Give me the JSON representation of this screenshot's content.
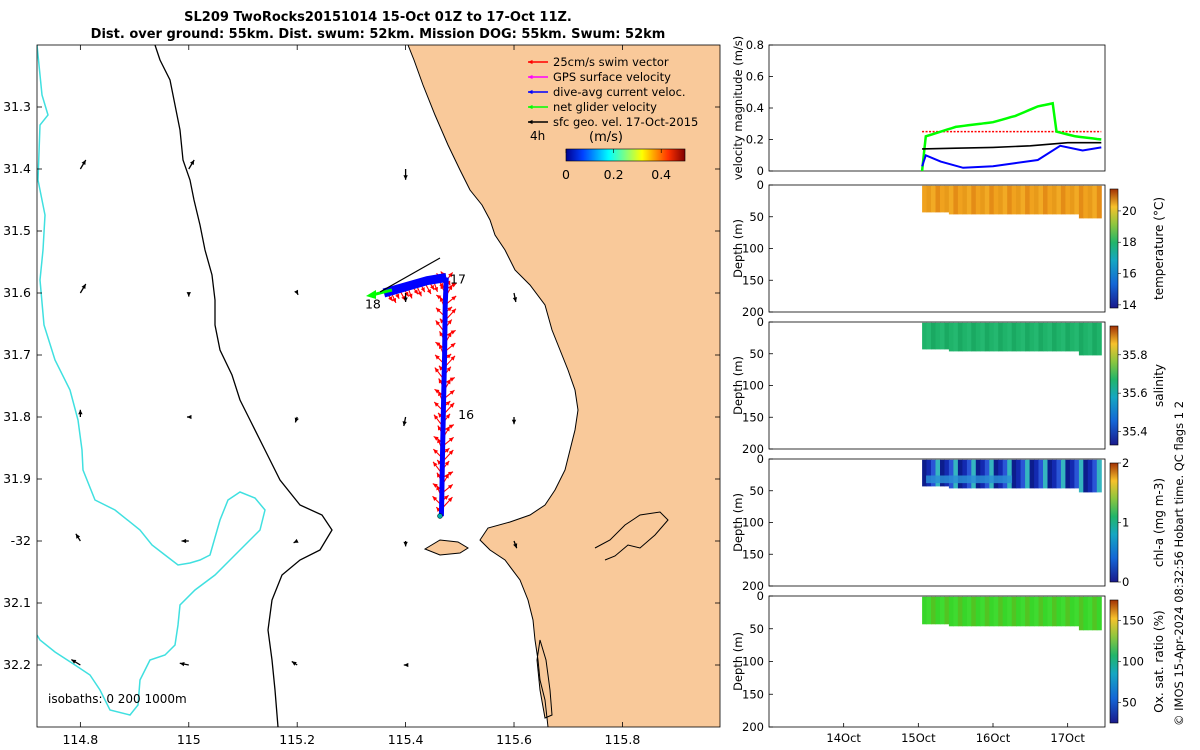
{
  "title_line1": "SL209 TwoRocks20151014 15-Oct 01Z to 17-Oct 11Z.",
  "title_line2": "Dist. over ground: 55km. Dist. swum: 52km. Mission DOG: 55km. Swum: 52km",
  "credit": "© IMOS 15-Apr-2024 08:32:56 Hobart time. QC flags 1  2",
  "colors": {
    "land": "#f9c99a",
    "isobath_200": "#40e0e0",
    "swim": "#ff0000",
    "gps": "#ff00ff",
    "current": "#0000ff",
    "net": "#00ff00",
    "geo": "#000000"
  },
  "chart_data": [
    {
      "type": "map",
      "xlim": [
        114.72,
        115.98
      ],
      "ylim": [
        -32.3,
        -31.2
      ],
      "xticks": [
        114.8,
        115.0,
        115.2,
        115.4,
        115.6,
        115.8
      ],
      "xtick_labels": [
        "114.8",
        "115",
        "115.2",
        "115.4",
        "115.6",
        "115.8"
      ],
      "yticks": [
        -31.3,
        -31.4,
        -31.5,
        -31.6,
        -31.7,
        -31.8,
        -31.9,
        -32.0,
        -32.1,
        -32.2
      ],
      "ytick_labels": [
        "31.3",
        "31.4",
        "31.5",
        "31.6",
        "31.7",
        "31.8",
        "31.9",
        "-32",
        "32.1",
        "32.2"
      ],
      "legend": [
        {
          "label": "25cm/s swim vector",
          "color": "#ff0000"
        },
        {
          "label": "GPS surface velocity",
          "color": "#ff00ff"
        },
        {
          "label": "dive-avg current veloc.",
          "color": "#0000ff"
        },
        {
          "label": "net glider velocity",
          "color": "#00ff00"
        },
        {
          "label": "sfc geo. vel. 17-Oct-2015",
          "color": "#000000"
        }
      ],
      "colorbar": {
        "label": "(m/s)",
        "range": [
          0,
          0.5
        ],
        "ticks": [
          0,
          0.2,
          0.4
        ],
        "tick_labels": [
          "0",
          "0.2",
          "0.4"
        ]
      },
      "time_label": "4h",
      "isobaths_text": "isobaths: 0   200  1000m",
      "track": [
        [
          115.475,
          -31.575
        ],
        [
          115.473,
          -31.62
        ],
        [
          115.472,
          -31.7
        ],
        [
          115.47,
          -31.78
        ],
        [
          115.468,
          -31.86
        ],
        [
          115.467,
          -31.92
        ],
        [
          115.466,
          -31.96
        ]
      ],
      "track_west": [
        [
          115.475,
          -31.575
        ],
        [
          115.44,
          -31.58
        ],
        [
          115.4,
          -31.59
        ],
        [
          115.36,
          -31.6
        ]
      ],
      "day_labels": [
        {
          "text": "16",
          "lon": 115.497,
          "lat": -31.803
        },
        {
          "text": "17",
          "lon": 115.482,
          "lat": -31.585
        },
        {
          "text": "18",
          "lon": 115.325,
          "lat": -31.625
        }
      ],
      "geo_vectors": [
        {
          "lon": 114.8,
          "lat": -31.4,
          "u": 0.3,
          "v": 0.5
        },
        {
          "lon": 115.0,
          "lat": -31.4,
          "u": 0.3,
          "v": 0.5
        },
        {
          "lon": 115.4,
          "lat": -31.4,
          "u": 0,
          "v": -0.6
        },
        {
          "lon": 114.8,
          "lat": -31.6,
          "u": 0.3,
          "v": 0.5
        },
        {
          "lon": 115.0,
          "lat": -31.6,
          "u": 0,
          "v": -0.2
        },
        {
          "lon": 115.2,
          "lat": -31.6,
          "u": 0.05,
          "v": -0.1
        },
        {
          "lon": 115.4,
          "lat": -31.6,
          "u": 0,
          "v": -0.5
        },
        {
          "lon": 115.6,
          "lat": -31.6,
          "u": 0.1,
          "v": -0.5
        },
        {
          "lon": 114.8,
          "lat": -31.8,
          "u": 0,
          "v": 0.4
        },
        {
          "lon": 115.0,
          "lat": -31.8,
          "u": -0.1,
          "v": 0
        },
        {
          "lon": 115.2,
          "lat": -31.8,
          "u": -0.1,
          "v": -0.3
        },
        {
          "lon": 115.4,
          "lat": -31.8,
          "u": -0.1,
          "v": -0.5
        },
        {
          "lon": 115.6,
          "lat": -31.8,
          "u": 0,
          "v": -0.4
        },
        {
          "lon": 114.8,
          "lat": -32.0,
          "u": -0.25,
          "v": 0.4
        },
        {
          "lon": 115.0,
          "lat": -32.0,
          "u": -0.4,
          "v": 0
        },
        {
          "lon": 115.2,
          "lat": -32.0,
          "u": -0.2,
          "v": -0.1
        },
        {
          "lon": 115.4,
          "lat": -32.0,
          "u": 0,
          "v": -0.3
        },
        {
          "lon": 115.6,
          "lat": -32.0,
          "u": 0.15,
          "v": -0.4
        },
        {
          "lon": 114.8,
          "lat": -32.2,
          "u": -0.5,
          "v": 0.3
        },
        {
          "lon": 115.0,
          "lat": -32.2,
          "u": -0.5,
          "v": 0.1
        },
        {
          "lon": 115.2,
          "lat": -32.2,
          "u": -0.3,
          "v": 0.2
        },
        {
          "lon": 115.4,
          "lat": -32.2,
          "u": -0.1,
          "v": 0
        }
      ]
    },
    {
      "type": "line",
      "ylabel": "velocity magnitude (m/s)",
      "ylim": [
        0,
        0.8
      ],
      "yticks": [
        0,
        0.2,
        0.4,
        0.6,
        0.8
      ],
      "ytick_labels": [
        "0",
        "0.2",
        "0.4",
        "0.6",
        "0.8"
      ],
      "xlim": [
        13.0,
        17.5
      ],
      "series": [
        {
          "name": "swim",
          "color": "#ff0000",
          "x": [
            15.05,
            17.45
          ],
          "y": [
            0.25,
            0.25
          ]
        },
        {
          "name": "net",
          "color": "#00ff00",
          "x": [
            15.05,
            15.1,
            15.5,
            16.0,
            16.3,
            16.6,
            16.8,
            16.85,
            17.1,
            17.45
          ],
          "y": [
            0.0,
            0.22,
            0.28,
            0.31,
            0.35,
            0.41,
            0.43,
            0.25,
            0.22,
            0.2
          ]
        },
        {
          "name": "current",
          "color": "#0000ff",
          "x": [
            15.05,
            15.1,
            15.3,
            15.6,
            16.0,
            16.3,
            16.6,
            16.9,
            17.2,
            17.45
          ],
          "y": [
            0.03,
            0.1,
            0.06,
            0.02,
            0.03,
            0.05,
            0.07,
            0.16,
            0.13,
            0.15
          ]
        },
        {
          "name": "geo",
          "color": "#000000",
          "x": [
            15.05,
            15.5,
            16.0,
            16.5,
            17.0,
            17.45
          ],
          "y": [
            0.14,
            0.145,
            0.15,
            0.16,
            0.18,
            0.18
          ]
        }
      ]
    },
    {
      "type": "heatmap",
      "variable": "temperature",
      "ylabel": "Depth (m)",
      "ylim": [
        0,
        200
      ],
      "yticks": [
        0,
        50,
        100,
        150,
        200
      ],
      "ytick_labels": [
        "0",
        "50",
        "100",
        "150",
        "200"
      ],
      "data_x": [
        15.05,
        17.45
      ],
      "depth_range": [
        0,
        45
      ],
      "fill_colors": [
        "#f0a21e",
        "#e89a1a",
        "#f2aa24",
        "#e48c16"
      ],
      "colorbar": {
        "label": "temperature (°C)",
        "range": [
          13.8,
          21.4
        ],
        "ticks": [
          14,
          16,
          18,
          20
        ],
        "tick_labels": [
          "14",
          "16",
          "18",
          "20"
        ],
        "colormap": "parula"
      }
    },
    {
      "type": "heatmap",
      "variable": "salinity",
      "ylabel": "Depth (m)",
      "ylim": [
        0,
        200
      ],
      "yticks": [
        0,
        50,
        100,
        150,
        200
      ],
      "ytick_labels": [
        "0",
        "50",
        "100",
        "150",
        "200"
      ],
      "data_x": [
        15.05,
        17.45
      ],
      "depth_range": [
        0,
        45
      ],
      "fill_colors": [
        "#1fb36a",
        "#24b870",
        "#1aa962"
      ],
      "colorbar": {
        "label": "salinity",
        "range": [
          35.33,
          35.95
        ],
        "ticks": [
          35.4,
          35.6,
          35.8
        ],
        "tick_labels": [
          "35.4",
          "35.6",
          "35.8"
        ],
        "colormap": "parula"
      }
    },
    {
      "type": "heatmap",
      "variable": "chl-a",
      "ylabel": "Depth (m)",
      "ylim": [
        0,
        200
      ],
      "yticks": [
        0,
        50,
        100,
        150,
        200
      ],
      "ytick_labels": [
        "0",
        "50",
        "100",
        "150",
        "200"
      ],
      "data_x": [
        15.05,
        17.45
      ],
      "depth_range": [
        0,
        45
      ],
      "fill_colors": [
        "#0c1d8c",
        "#132ab0",
        "#2a55d6",
        "#35b6c0"
      ],
      "colorbar": {
        "label": "chl-a (mg m-3)",
        "range": [
          0,
          2
        ],
        "ticks": [
          0,
          1,
          2
        ],
        "tick_labels": [
          "0",
          "1",
          "2"
        ],
        "colormap": "parula"
      }
    },
    {
      "type": "heatmap",
      "variable": "oxygen saturation",
      "ylabel": "Depth (m)",
      "ylim": [
        0,
        200
      ],
      "yticks": [
        0,
        50,
        100,
        150,
        200
      ],
      "ytick_labels": [
        "0",
        "50",
        "100",
        "150",
        "200"
      ],
      "data_x": [
        15.05,
        17.45
      ],
      "depth_range": [
        0,
        45
      ],
      "fill_colors": [
        "#38d62a",
        "#3fdb30",
        "#52c423"
      ],
      "colorbar": {
        "label": "Ox. sat. ratio (%)",
        "range": [
          25,
          175
        ],
        "ticks": [
          50,
          100,
          150
        ],
        "tick_labels": [
          "50",
          "100",
          "150"
        ],
        "colormap": "parula"
      }
    }
  ],
  "time_axis": {
    "ticks": [
      14,
      15,
      16,
      17
    ],
    "tick_labels": [
      "14Oct",
      "15Oct",
      "16Oct",
      "17Oct"
    ]
  }
}
